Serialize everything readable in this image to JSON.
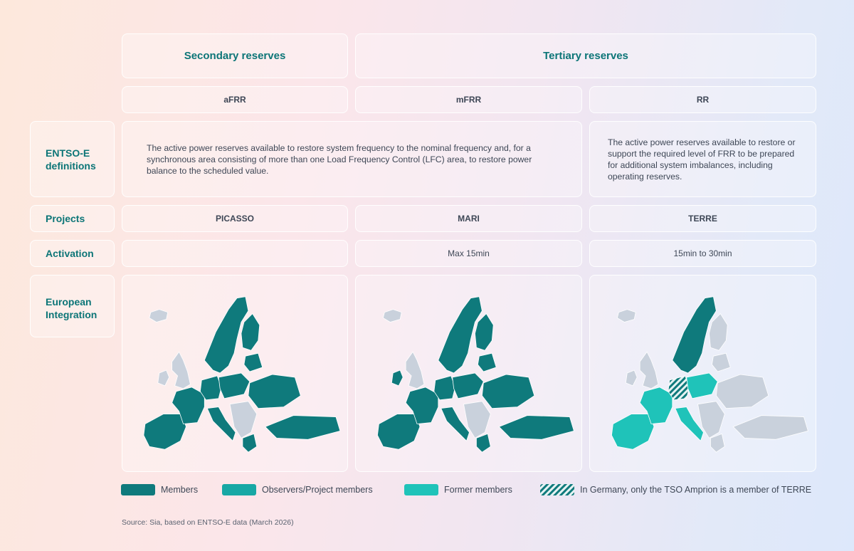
{
  "headers": {
    "secondary": "Secondary reserves",
    "tertiary": "Tertiary reserves"
  },
  "products": {
    "afrr": "aFRR",
    "mfrr": "mFRR",
    "rr": "RR"
  },
  "rows": {
    "definitions_label": "ENTSO-E definitions",
    "projects_label": "Projects",
    "activation_label": "Activation",
    "integration_label": "European Integration"
  },
  "definitions": {
    "frr": "The active power reserves available to restore system frequency to the nominal frequency and, for a synchronous area consisting of more than one Load Frequency Control (LFC) area, to restore power balance to the scheduled value.",
    "rr": "The active power reserves available to restore or support the required level of FRR to be prepared for additional system imbalances, including operating reserves."
  },
  "projects": {
    "afrr": "PICASSO",
    "mfrr": "MARI",
    "rr": "TERRE"
  },
  "activation": {
    "afrr": "",
    "mfrr": "Max 15min",
    "rr": "15min to 30min"
  },
  "legend": {
    "members": "Members",
    "observers": "Observers/Project members",
    "former": "Former members",
    "germany_note": "In Germany, only the TSO Amprion is a member of TERRE"
  },
  "colors": {
    "members": "#0f7a7c",
    "observers": "#17a8a5",
    "former": "#1fc3b9",
    "non_member": "#c9d1dc",
    "accent_text": "#0c7577"
  },
  "source": "Source: Sia, based on ENTSO-E data (March 2026)"
}
